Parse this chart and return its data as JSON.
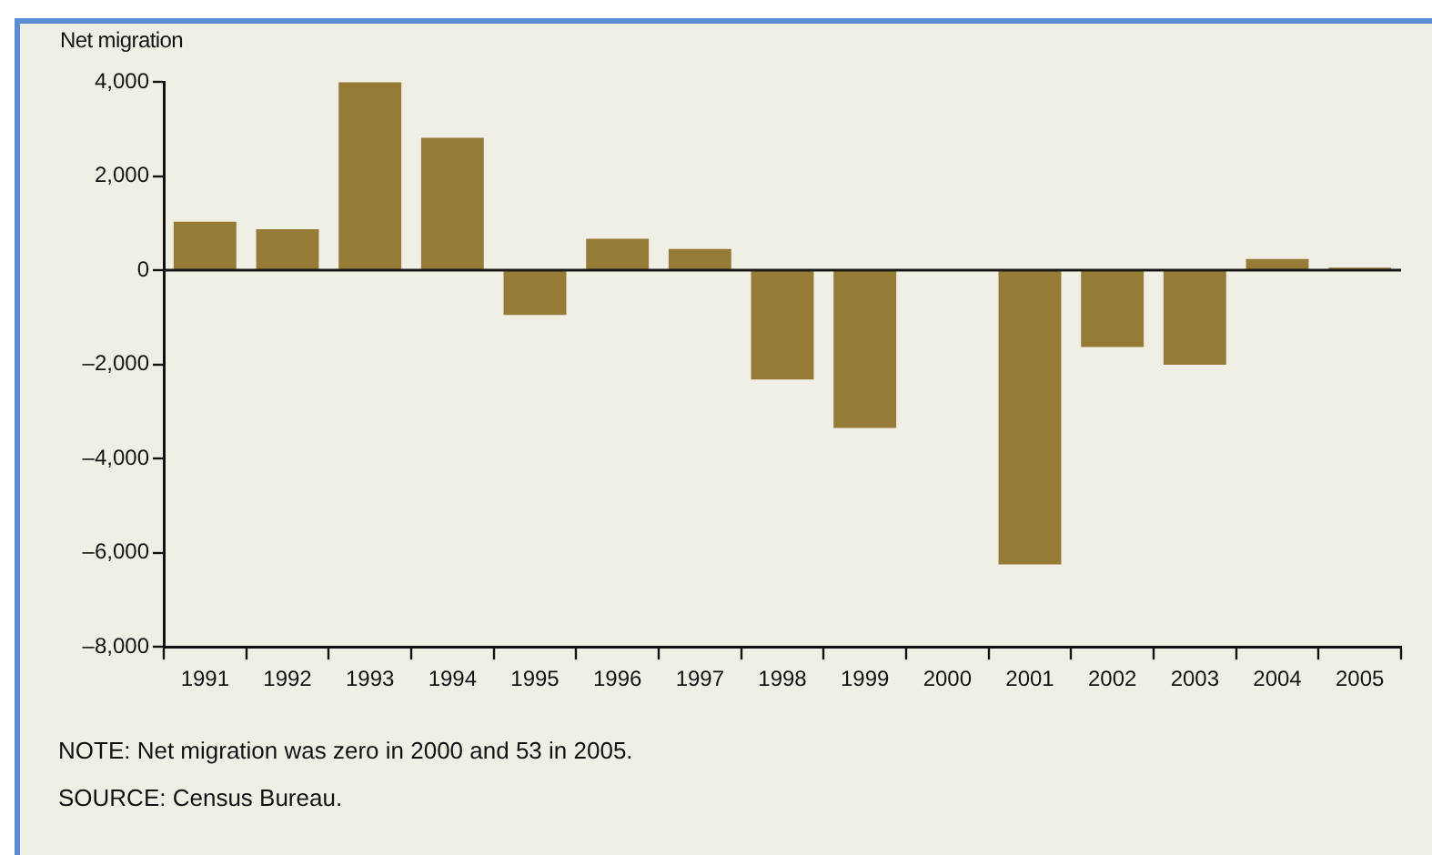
{
  "chart_data": {
    "type": "bar",
    "ylabel": "Net migration",
    "categories": [
      "1991",
      "1992",
      "1993",
      "1994",
      "1995",
      "1996",
      "1997",
      "1998",
      "1999",
      "2000",
      "2001",
      "2002",
      "2003",
      "2004",
      "2005"
    ],
    "values": [
      1030,
      870,
      3990,
      2810,
      -950,
      670,
      450,
      -2320,
      -3350,
      0,
      -6250,
      -1630,
      -2010,
      240,
      53
    ],
    "color": "#957b35",
    "ylim": [
      -8000,
      4000
    ],
    "yticks": [
      {
        "value": -8000,
        "label": "–8,000"
      },
      {
        "value": -6000,
        "label": "–6,000"
      },
      {
        "value": -4000,
        "label": "–4,000"
      },
      {
        "value": -2000,
        "label": "–2,000"
      },
      {
        "value": 0,
        "label": "0"
      },
      {
        "value": 2000,
        "label": "2,000"
      },
      {
        "value": 4000,
        "label": "4,000"
      }
    ],
    "grid": false,
    "legend": false,
    "ref_lines": [
      {
        "axis": "y",
        "value": 0,
        "color": "#1a1a1a"
      }
    ],
    "annotations": [
      "NOTE: Net migration was zero in 2000 and 53 in 2005.",
      "SOURCE: Census Bureau."
    ]
  }
}
